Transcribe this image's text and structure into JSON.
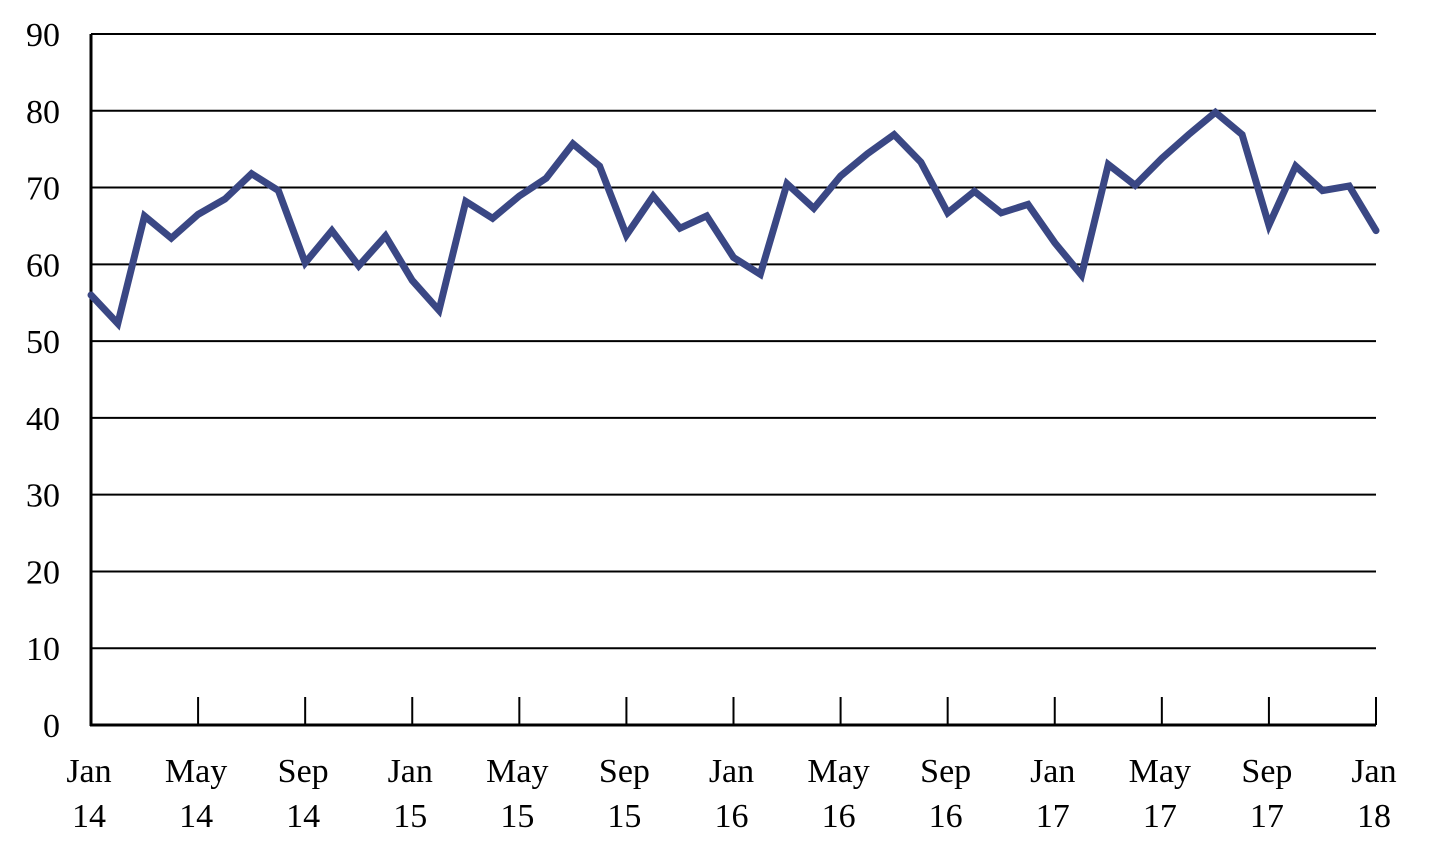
{
  "chart_data": {
    "type": "line",
    "title": "",
    "xlabel": "",
    "ylabel": "",
    "ylim": [
      0,
      90
    ],
    "yticks": [
      0,
      10,
      20,
      30,
      40,
      50,
      60,
      70,
      80,
      90
    ],
    "xticks": [
      {
        "month": "Jan",
        "year": "14"
      },
      {
        "month": "May",
        "year": "14"
      },
      {
        "month": "Sep",
        "year": "14"
      },
      {
        "month": "Jan",
        "year": "15"
      },
      {
        "month": "May",
        "year": "15"
      },
      {
        "month": "Sep",
        "year": "15"
      },
      {
        "month": "Jan",
        "year": "16"
      },
      {
        "month": "May",
        "year": "16"
      },
      {
        "month": "Sep",
        "year": "16"
      },
      {
        "month": "Jan",
        "year": "17"
      },
      {
        "month": "May",
        "year": "17"
      },
      {
        "month": "Sep",
        "year": "17"
      },
      {
        "month": "Jan",
        "year": "18"
      }
    ],
    "grid": true,
    "line_color": "#3a4784",
    "series": [
      {
        "x": [
          "Jan 14",
          "Feb 14",
          "Mar 14",
          "Apr 14",
          "May 14",
          "Jun 14",
          "Jul 14",
          "Aug 14",
          "Sep 14",
          "Oct 14",
          "Nov 14",
          "Dec 14",
          "Jan 15",
          "Feb 15",
          "Mar 15",
          "Apr 15",
          "May 15",
          "Jun 15",
          "Jul 15",
          "Aug 15",
          "Sep 15",
          "Oct 15",
          "Nov 15",
          "Dec 15",
          "Jan 16",
          "Feb 16",
          "Mar 16",
          "Apr 16",
          "May 16",
          "Jun 16",
          "Jul 16",
          "Aug 16",
          "Sep 16",
          "Oct 16",
          "Nov 16",
          "Dec 16",
          "Jan 17",
          "Feb 17",
          "Mar 17",
          "Apr 17",
          "May 17",
          "Jun 17",
          "Jul 17",
          "Aug 17",
          "Sep 17",
          "Oct 17",
          "Nov 17",
          "Dec 17",
          "Jan 18"
        ],
        "values": [
          56,
          52.3,
          66.3,
          63.4,
          66.5,
          68.5,
          71.8,
          69.6,
          60.2,
          64.4,
          59.8,
          63.7,
          57.9,
          54,
          68.2,
          66,
          68.9,
          71.2,
          75.7,
          72.8,
          63.8,
          68.9,
          64.7,
          66.3,
          60.9,
          58.7,
          70.5,
          67.3,
          71.5,
          74.4,
          76.9,
          73.3,
          66.7,
          69.5,
          66.7,
          67.8,
          62.8,
          58.6,
          73,
          70.3,
          73.8,
          76.9,
          79.8,
          76.9,
          65.1,
          72.8,
          69.6,
          70.2,
          64.4
        ]
      }
    ]
  }
}
